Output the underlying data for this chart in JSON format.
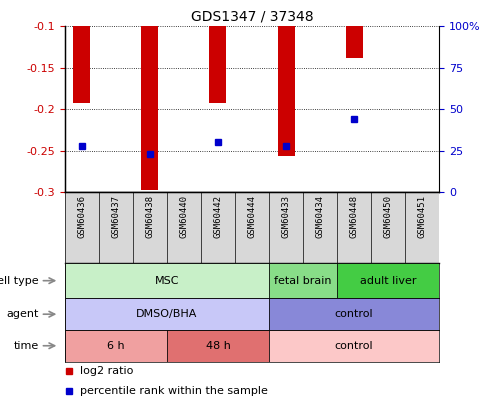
{
  "title": "GDS1347 / 37348",
  "samples": [
    "GSM60436",
    "GSM60437",
    "GSM60438",
    "GSM60440",
    "GSM60442",
    "GSM60444",
    "GSM60433",
    "GSM60434",
    "GSM60448",
    "GSM60450",
    "GSM60451"
  ],
  "log2_ratio": [
    -0.193,
    null,
    -0.298,
    null,
    -0.192,
    null,
    -0.256,
    null,
    -0.138,
    null,
    null
  ],
  "percentile_rank": [
    28,
    null,
    23,
    null,
    30,
    null,
    28,
    null,
    44,
    null,
    null
  ],
  "ylim_left": [
    -0.3,
    -0.1
  ],
  "ylim_right": [
    0,
    100
  ],
  "yticks_left": [
    -0.3,
    -0.25,
    -0.2,
    -0.15,
    -0.1
  ],
  "yticks_right": [
    0,
    25,
    50,
    75,
    100
  ],
  "ytick_labels_right": [
    "0",
    "25",
    "50",
    "75",
    "100%"
  ],
  "cell_type_groups": [
    {
      "label": "MSC",
      "start": 0,
      "end": 6,
      "color": "#c8f0c8"
    },
    {
      "label": "fetal brain",
      "start": 6,
      "end": 8,
      "color": "#88dd88"
    },
    {
      "label": "adult liver",
      "start": 8,
      "end": 11,
      "color": "#44cc44"
    }
  ],
  "agent_groups": [
    {
      "label": "DMSO/BHA",
      "start": 0,
      "end": 6,
      "color": "#c8c8f8"
    },
    {
      "label": "control",
      "start": 6,
      "end": 11,
      "color": "#8888d8"
    }
  ],
  "time_groups": [
    {
      "label": "6 h",
      "start": 0,
      "end": 3,
      "color": "#f0a0a0"
    },
    {
      "label": "48 h",
      "start": 3,
      "end": 6,
      "color": "#e07070"
    },
    {
      "label": "control",
      "start": 6,
      "end": 11,
      "color": "#fcc8c8"
    }
  ],
  "row_labels": [
    "cell type",
    "agent",
    "time"
  ],
  "legend_items": [
    {
      "color": "#cc0000",
      "label": "log2 ratio"
    },
    {
      "color": "#0000cc",
      "label": "percentile rank within the sample"
    }
  ],
  "bar_color": "#cc0000",
  "dot_color": "#0000cc",
  "axis_left_color": "#cc0000",
  "axis_right_color": "#0000cc"
}
